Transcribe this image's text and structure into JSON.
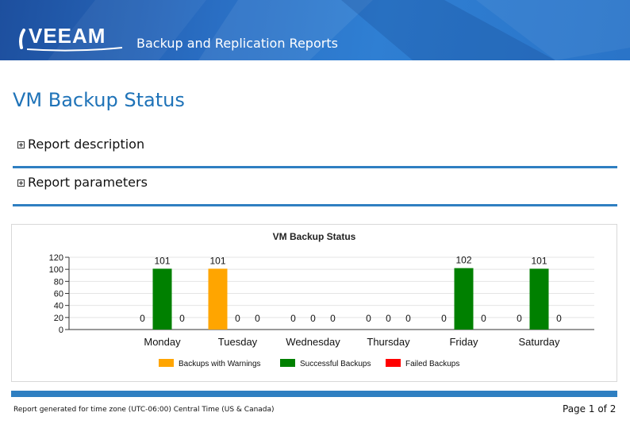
{
  "header": {
    "logo_text": "VEEAM",
    "app_title": "Backup and Replication Reports"
  },
  "page_title": "VM Backup Status",
  "sections": [
    {
      "label": "Report description"
    },
    {
      "label": "Report parameters"
    }
  ],
  "chart_data": {
    "type": "bar",
    "title": "VM Backup Status",
    "categories": [
      "Monday",
      "Tuesday",
      "Wednesday",
      "Thursday",
      "Friday",
      "Saturday"
    ],
    "series": [
      {
        "name": "Backups with Warnings",
        "color": "#ffa500",
        "values": [
          0,
          101,
          0,
          0,
          0,
          0
        ]
      },
      {
        "name": "Successful Backups",
        "color": "#008000",
        "values": [
          101,
          0,
          0,
          0,
          102,
          101
        ]
      },
      {
        "name": "Failed Backups",
        "color": "#ff0000",
        "values": [
          0,
          0,
          0,
          0,
          0,
          0
        ]
      }
    ],
    "ylim": [
      0,
      120
    ],
    "yticks": [
      0,
      20,
      40,
      60,
      80,
      100,
      120
    ],
    "grid": true,
    "legend_position": "bottom"
  },
  "footer": {
    "note": "Report generated for time zone (UTC-06:00) Central Time (US & Canada)",
    "page_indicator": "Page 1 of 2"
  }
}
